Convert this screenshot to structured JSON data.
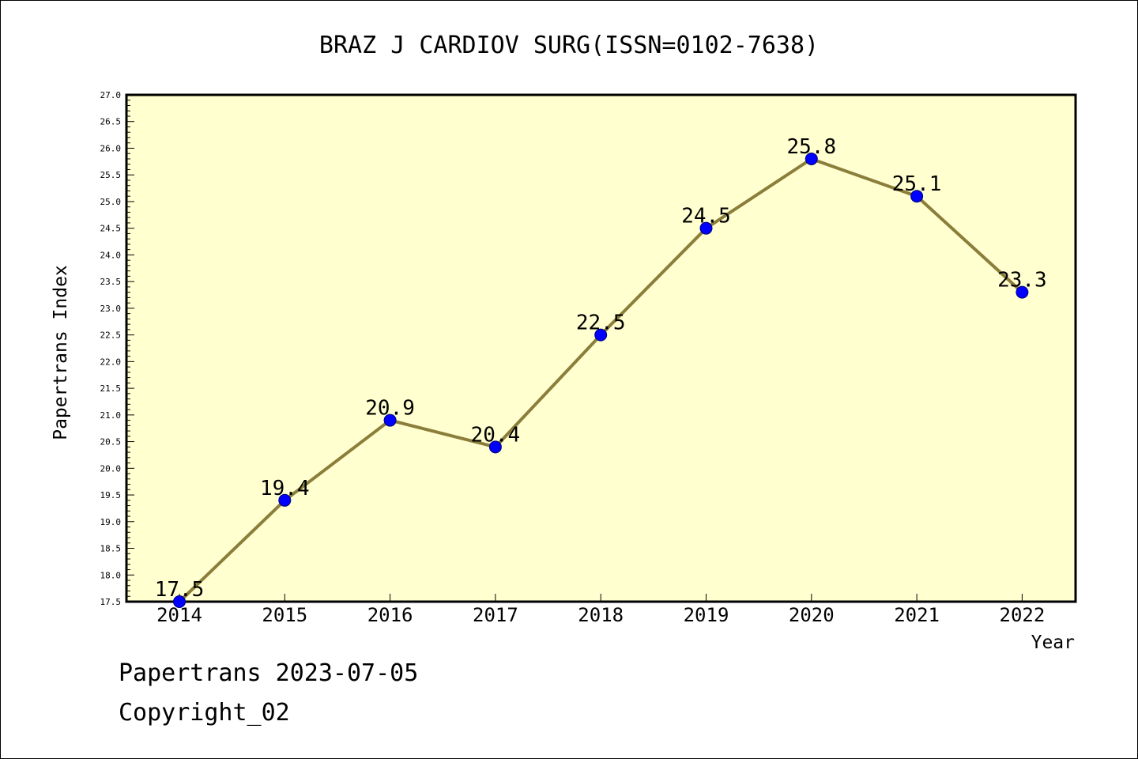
{
  "chart_data": {
    "type": "line",
    "title": "BRAZ J CARDIOV SURG(ISSN=0102-7638)",
    "xlabel": "Year",
    "ylabel": "Papertrans Index",
    "categories": [
      "2014",
      "2015",
      "2016",
      "2017",
      "2018",
      "2019",
      "2020",
      "2021",
      "2022"
    ],
    "series": [
      {
        "values": [
          17.5,
          19.4,
          20.9,
          20.4,
          22.5,
          24.5,
          25.8,
          25.1,
          23.3
        ],
        "labels": [
          "17.5",
          "19.4",
          "20.9",
          "20.4",
          "22.5",
          "24.5",
          "25.8",
          "25.1",
          "23.3"
        ]
      }
    ],
    "ylim": [
      17.5,
      27.0
    ],
    "yticks": [
      "17.5",
      "18.0",
      "18.5",
      "19.0",
      "19.5",
      "20.0",
      "20.5",
      "21.0",
      "21.5",
      "22.0",
      "22.5",
      "23.0",
      "23.5",
      "24.0",
      "24.5",
      "25.0",
      "25.5",
      "26.0",
      "26.5",
      "27.0"
    ],
    "grid": false,
    "colors": {
      "plot_background": "#ffffd0",
      "line": "#8b7d3a",
      "marker": "#0000ff"
    }
  },
  "footer": {
    "line1": "Papertrans 2023-07-05",
    "line2": "Copyright_02"
  }
}
